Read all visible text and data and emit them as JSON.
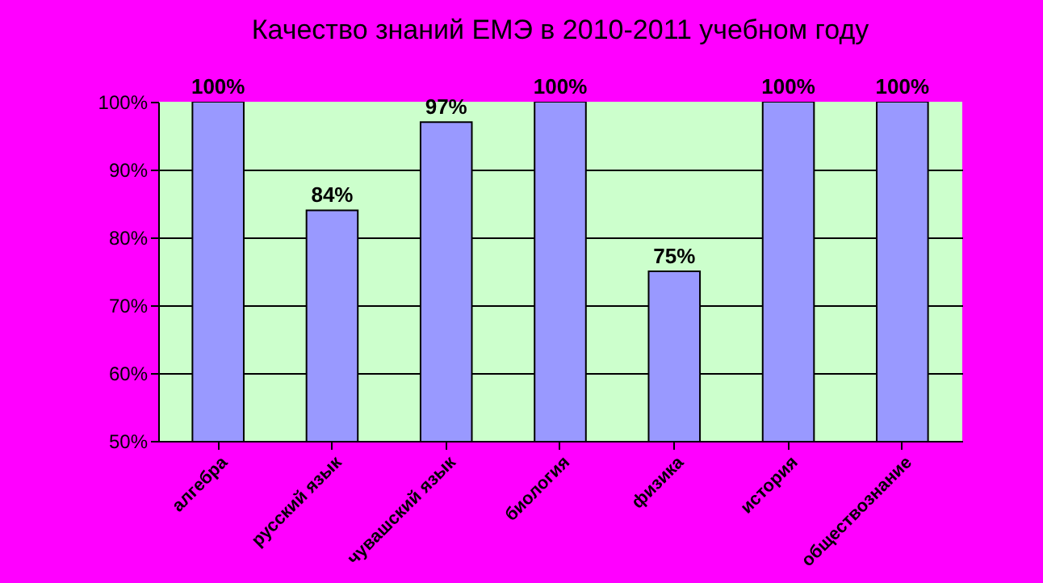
{
  "chart_data": {
    "type": "bar",
    "title": "Качество знаний ЕМЭ в  2010-2011 учебном году",
    "categories": [
      "алгебра",
      "русский язык",
      "чувашский язык",
      "биология",
      "физика",
      "история",
      "обществознание"
    ],
    "values": [
      100,
      84,
      97,
      100,
      75,
      100,
      100
    ],
    "value_labels": [
      "100%",
      "84%",
      "97%",
      "100%",
      "75%",
      "100%",
      "100%"
    ],
    "color": "#9999ff",
    "ylim": [
      50,
      100
    ],
    "yticks": [
      {
        "value": 50,
        "label": "50%"
      },
      {
        "value": 60,
        "label": "60%"
      },
      {
        "value": 70,
        "label": "70%"
      },
      {
        "value": 80,
        "label": "80%"
      },
      {
        "value": 90,
        "label": "90%"
      },
      {
        "value": 100,
        "label": "100%"
      }
    ],
    "grid": "y"
  }
}
